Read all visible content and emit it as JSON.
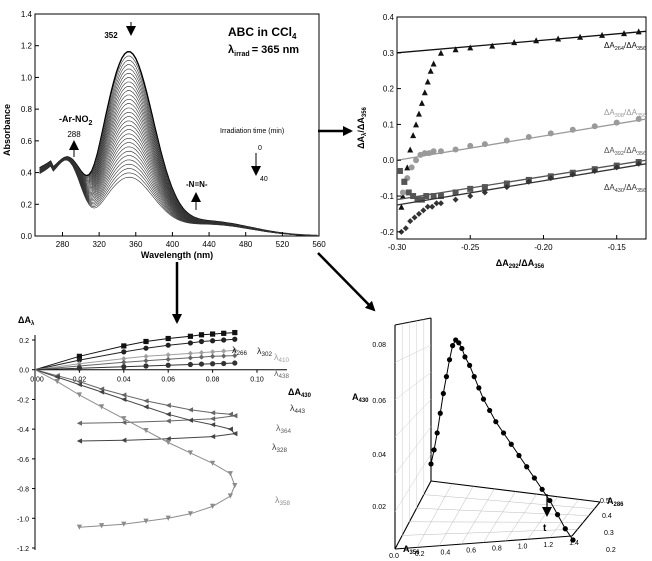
{
  "chart_data": [
    {
      "panel": "a",
      "type": "line",
      "title": "ABC in CCl",
      "title_sub": "4",
      "subtitle": "λ",
      "subtitle_sub": "irrad",
      "subtitle_value": "= 365 nm",
      "xlabel": "Wavelength (nm)",
      "ylabel": "Absorbance",
      "xlim": [
        250,
        560
      ],
      "ylim": [
        0.0,
        1.4
      ],
      "xticks": [
        280,
        320,
        360,
        400,
        440,
        480,
        520,
        560
      ],
      "yticks": [
        0.0,
        0.2,
        0.4,
        0.6,
        0.8,
        1.0,
        1.2,
        1.4
      ],
      "annotations": {
        "peak_label": "352",
        "aryl_label": "-Ar-NO",
        "aryl_sub": "2",
        "aryl_value": "288",
        "azo_label": "-N=N-",
        "time_label": "Irradiation time (min)",
        "time_start": "0",
        "time_end": "40"
      },
      "spectra_count": 30,
      "peak_nm": 352,
      "peak_initial": 1.27,
      "peak_final": 0.48,
      "aryl_peak_nm": 288,
      "aryl_initial": 0.43,
      "aryl_final": 0.5
    },
    {
      "panel": "b",
      "type": "scatter",
      "xlabel": "ΔA",
      "xlabel_sub": "292",
      "xlabel_den": "/ΔA",
      "xlabel_den_sub": "356",
      "ylabel": "ΔA",
      "ylabel_sub": "λ",
      "ylabel_den": "/ΔA",
      "ylabel_den_sub": "356",
      "xlim": [
        -0.3,
        -0.13
      ],
      "ylim": [
        -0.22,
        0.4
      ],
      "xticks": [
        -0.3,
        -0.25,
        -0.2,
        -0.15
      ],
      "yticks": [
        -0.2,
        -0.1,
        0.0,
        0.1,
        0.2,
        0.3,
        0.4
      ],
      "series": [
        {
          "name": "ΔA",
          "name_sub": "264",
          "name_den": "/ΔA",
          "name_den_sub": "356",
          "color": "#111111",
          "marker": "triangle",
          "x": [
            -0.297,
            -0.296,
            -0.295,
            -0.293,
            -0.291,
            -0.289,
            -0.287,
            -0.285,
            -0.283,
            -0.281,
            -0.279,
            -0.277,
            -0.275,
            -0.27,
            -0.26,
            -0.25,
            -0.235,
            -0.22,
            -0.205,
            -0.19,
            -0.175,
            -0.16,
            -0.145,
            -0.135
          ],
          "y": [
            -0.13,
            -0.1,
            -0.06,
            -0.02,
            0.03,
            0.07,
            0.1,
            0.13,
            0.16,
            0.19,
            0.22,
            0.25,
            0.27,
            0.3,
            0.31,
            0.315,
            0.32,
            0.33,
            0.335,
            0.34,
            0.345,
            0.35,
            0.355,
            0.36
          ],
          "fit": [
            [
              -0.3,
              0.3
            ],
            [
              -0.13,
              0.36
            ]
          ]
        },
        {
          "name": "ΔA",
          "name_sub": "308",
          "name_den": "/ΔA",
          "name_den_sub": "356",
          "color": "#9a9a9a",
          "marker": "circle",
          "x": [
            -0.296,
            -0.293,
            -0.29,
            -0.287,
            -0.284,
            -0.281,
            -0.278,
            -0.275,
            -0.27,
            -0.26,
            -0.25,
            -0.24,
            -0.225,
            -0.21,
            -0.195,
            -0.18,
            -0.165,
            -0.15,
            -0.135
          ],
          "y": [
            -0.09,
            -0.05,
            -0.02,
            0.0,
            0.015,
            0.02,
            0.02,
            0.025,
            0.025,
            0.03,
            0.04,
            0.045,
            0.055,
            0.065,
            0.075,
            0.085,
            0.095,
            0.105,
            0.115
          ],
          "fit": [
            [
              -0.3,
              0.0
            ],
            [
              -0.13,
              0.115
            ]
          ]
        },
        {
          "name": "ΔA",
          "name_sub": "392",
          "name_den": "/ΔA",
          "name_den_sub": "356",
          "color": "#555555",
          "marker": "square",
          "x": [
            -0.298,
            -0.295,
            -0.292,
            -0.289,
            -0.286,
            -0.283,
            -0.28,
            -0.275,
            -0.27,
            -0.26,
            -0.25,
            -0.24,
            -0.225,
            -0.21,
            -0.195,
            -0.18,
            -0.165,
            -0.15,
            -0.135
          ],
          "y": [
            -0.03,
            -0.06,
            -0.09,
            -0.1,
            -0.11,
            -0.11,
            -0.1,
            -0.1,
            -0.1,
            -0.09,
            -0.08,
            -0.075,
            -0.065,
            -0.055,
            -0.045,
            -0.035,
            -0.025,
            -0.015,
            -0.005
          ],
          "fit": [
            [
              -0.3,
              -0.11
            ],
            [
              -0.13,
              0.0
            ]
          ]
        },
        {
          "name": "ΔA",
          "name_sub": "430",
          "name_den": "/ΔA",
          "name_den_sub": "356",
          "color": "#333333",
          "marker": "diamond",
          "x": [
            -0.297,
            -0.294,
            -0.291,
            -0.288,
            -0.285,
            -0.282,
            -0.279,
            -0.276,
            -0.273,
            -0.27,
            -0.26,
            -0.25,
            -0.24,
            -0.225,
            -0.21,
            -0.195,
            -0.18,
            -0.165,
            -0.15,
            -0.135
          ],
          "y": [
            -0.2,
            -0.19,
            -0.17,
            -0.16,
            -0.15,
            -0.14,
            -0.13,
            -0.13,
            -0.12,
            -0.12,
            -0.11,
            -0.1,
            -0.09,
            -0.075,
            -0.06,
            -0.05,
            -0.04,
            -0.03,
            -0.02,
            -0.01
          ],
          "fit": [
            [
              -0.3,
              -0.125
            ],
            [
              -0.13,
              -0.01
            ]
          ]
        }
      ]
    },
    {
      "panel": "c",
      "type": "line",
      "xlabel": "ΔA",
      "xlabel_sub": "430",
      "ylabel": "ΔA",
      "ylabel_sub": "λ",
      "xlim": [
        0.0,
        0.1
      ],
      "ylim": [
        -1.2,
        0.2
      ],
      "xticks": [
        0.0,
        0.02,
        0.04,
        0.06,
        0.08,
        0.1
      ],
      "xtick_labels": [
        "0.00",
        "0.02",
        "0.04",
        "0.06",
        "0.08",
        "0.10"
      ],
      "yticks": [
        0.2,
        0.0,
        -0.2,
        -0.4,
        -0.6,
        -0.8,
        -1.0,
        -1.2
      ],
      "ytick_labels": [
        "0.2",
        "0.0",
        "-0.2",
        "-0.4",
        "-0.6",
        "-0.8",
        "-1.0",
        "-1.2"
      ],
      "series": [
        {
          "name": "λ",
          "name_sub": "266",
          "color": "#111111",
          "marker": "square",
          "x": [
            0.0,
            0.02,
            0.04,
            0.05,
            0.06,
            0.07,
            0.075,
            0.08,
            0.085,
            0.09
          ],
          "y": [
            0.0,
            0.09,
            0.16,
            0.19,
            0.21,
            0.225,
            0.235,
            0.24,
            0.245,
            0.25
          ]
        },
        {
          "name": "λ",
          "name_sub": "302",
          "color": "#222222",
          "marker": "circle",
          "x": [
            0.0,
            0.02,
            0.04,
            0.05,
            0.06,
            0.07,
            0.075,
            0.08,
            0.085,
            0.09
          ],
          "y": [
            0.0,
            0.065,
            0.12,
            0.145,
            0.165,
            0.18,
            0.19,
            0.195,
            0.2,
            0.205
          ]
        },
        {
          "name": "λ",
          "name_sub": "410",
          "color": "#a0a0a0",
          "marker": "diamond",
          "x": [
            0.0,
            0.02,
            0.04,
            0.05,
            0.06,
            0.07,
            0.075,
            0.08,
            0.085,
            0.09
          ],
          "y": [
            0.0,
            0.04,
            0.075,
            0.09,
            0.1,
            0.11,
            0.115,
            0.12,
            0.125,
            0.13
          ]
        },
        {
          "name": "λ",
          "name_sub": "438",
          "color": "#666666",
          "marker": "diamond",
          "x": [
            0.0,
            0.02,
            0.04,
            0.05,
            0.06,
            0.07,
            0.075,
            0.08,
            0.085,
            0.09
          ],
          "y": [
            0.0,
            0.025,
            0.05,
            0.06,
            0.07,
            0.08,
            0.085,
            0.09,
            0.092,
            0.095
          ]
        },
        {
          "name": "λ",
          "name_sub": "443",
          "color": "#333333",
          "marker": "circle",
          "x": [
            0.0,
            0.02,
            0.04,
            0.05,
            0.06,
            0.07,
            0.075,
            0.08,
            0.085,
            0.09
          ],
          "y": [
            0.0,
            0.01,
            0.02,
            0.025,
            0.03,
            0.035,
            0.038,
            0.04,
            0.042,
            0.045
          ]
        },
        {
          "name": "λ",
          "name_sub": "364",
          "color": "#666666",
          "marker": "triangle-left",
          "x": [
            0.0,
            0.01,
            0.02,
            0.03,
            0.04,
            0.05,
            0.06,
            0.07,
            0.08,
            0.088,
            0.09,
            0.08,
            0.06,
            0.04,
            0.02
          ],
          "y": [
            0.0,
            -0.04,
            -0.08,
            -0.13,
            -0.17,
            -0.21,
            -0.24,
            -0.27,
            -0.29,
            -0.3,
            -0.31,
            -0.33,
            -0.345,
            -0.355,
            -0.36
          ]
        },
        {
          "name": "λ",
          "name_sub": "328",
          "color": "#444444",
          "marker": "triangle-left",
          "x": [
            0.0,
            0.01,
            0.02,
            0.03,
            0.04,
            0.05,
            0.06,
            0.07,
            0.08,
            0.088,
            0.09,
            0.08,
            0.06,
            0.04,
            0.02
          ],
          "y": [
            0.0,
            -0.05,
            -0.1,
            -0.15,
            -0.2,
            -0.25,
            -0.3,
            -0.34,
            -0.37,
            -0.4,
            -0.43,
            -0.45,
            -0.465,
            -0.475,
            -0.48
          ]
        },
        {
          "name": "λ",
          "name_sub": "358",
          "color": "#8c8c8c",
          "marker": "triangle-down",
          "x": [
            0.0,
            0.01,
            0.02,
            0.03,
            0.04,
            0.05,
            0.06,
            0.07,
            0.08,
            0.088,
            0.09,
            0.088,
            0.08,
            0.07,
            0.06,
            0.05,
            0.04,
            0.03,
            0.02
          ],
          "y": [
            0.0,
            -0.08,
            -0.17,
            -0.25,
            -0.33,
            -0.41,
            -0.49,
            -0.56,
            -0.63,
            -0.7,
            -0.78,
            -0.85,
            -0.92,
            -0.97,
            -1.0,
            -1.02,
            -1.04,
            -1.05,
            -1.06
          ]
        }
      ]
    },
    {
      "panel": "d",
      "type": "line3d",
      "xlabel": "A",
      "xlabel_sub": "356",
      "ylabel": "A",
      "ylabel_sub": "430",
      "zlabel": "A",
      "zlabel_sub": "286",
      "xticks": [
        "0.0",
        "0.2",
        "0.4",
        "0.6",
        "0.8",
        "1.0",
        "1.2",
        "1.4"
      ],
      "yticks": [
        "0.02",
        "0.04",
        "0.06",
        "0.08"
      ],
      "zticks": [
        "0.2",
        "0.3",
        "0.4",
        "0.5"
      ],
      "arrow_label": "t",
      "projected_curve": {
        "a356": [
          1.2,
          1.15,
          1.1,
          1.05,
          1.0,
          0.95,
          0.9,
          0.85,
          0.8,
          0.75,
          0.7,
          0.66,
          0.62,
          0.59,
          0.56,
          0.53,
          0.5,
          0.48,
          0.46,
          0.44,
          0.42,
          0.4,
          0.38,
          0.36,
          0.34,
          0.32,
          0.3,
          0.28
        ],
        "a430": [
          0.016,
          0.02,
          0.025,
          0.03,
          0.034,
          0.038,
          0.042,
          0.046,
          0.05,
          0.054,
          0.058,
          0.062,
          0.066,
          0.07,
          0.074,
          0.078,
          0.081,
          0.084,
          0.086,
          0.087,
          0.085,
          0.08,
          0.074,
          0.068,
          0.061,
          0.054,
          0.048,
          0.043
        ]
      }
    }
  ]
}
